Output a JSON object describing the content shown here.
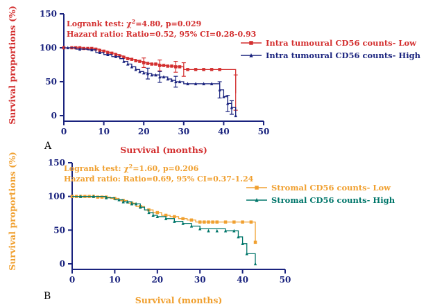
{
  "chart_data": [
    {
      "type": "line",
      "panel_label": "A",
      "xlabel": "Survival (months)",
      "ylabel": "Survival proportions (%)",
      "xlim": [
        0,
        50
      ],
      "ylim": [
        0,
        150
      ],
      "xticks": [
        "0",
        "10",
        "20",
        "30",
        "40",
        "50"
      ],
      "yticks": [
        "0",
        "50",
        "100",
        "150"
      ],
      "annotations": [
        "Logrank test: χ²=4.80, p=0.029",
        "Hazard ratio: Ratio=0.52, 95% CI=0.28-0.93"
      ],
      "legend_position": "right",
      "axis_color": "#1a237e",
      "label_color": "#d32f2f",
      "series": [
        {
          "name": "Intra tumoural CD56 counts- Low",
          "color": "#d32f2f",
          "marker": "square",
          "x": [
            0,
            2,
            5,
            7,
            8,
            9,
            10,
            11,
            12,
            13,
            14,
            15,
            16,
            17,
            18,
            19,
            20,
            21,
            22,
            24,
            26,
            27,
            28,
            30,
            31,
            43
          ],
          "y": [
            100,
            100,
            99,
            99,
            98,
            96,
            95,
            93,
            92,
            90,
            88,
            86,
            84,
            83,
            81,
            80,
            78,
            77,
            76,
            74,
            73,
            73,
            72,
            68,
            68,
            33
          ],
          "censored": [
            {
              "x": 0,
              "y": 100
            },
            {
              "x": 2,
              "y": 100
            },
            {
              "x": 3,
              "y": 100
            },
            {
              "x": 4,
              "y": 100
            },
            {
              "x": 5,
              "y": 99
            },
            {
              "x": 6,
              "y": 99
            },
            {
              "x": 7,
              "y": 99
            },
            {
              "x": 8,
              "y": 98
            },
            {
              "x": 9,
              "y": 96
            },
            {
              "x": 10,
              "y": 95
            },
            {
              "x": 11,
              "y": 93
            },
            {
              "x": 12,
              "y": 92
            },
            {
              "x": 13,
              "y": 90
            },
            {
              "x": 14,
              "y": 88
            },
            {
              "x": 15,
              "y": 86
            },
            {
              "x": 16,
              "y": 84
            },
            {
              "x": 17,
              "y": 83
            },
            {
              "x": 18,
              "y": 81
            },
            {
              "x": 19,
              "y": 80
            },
            {
              "x": 20,
              "y": 78
            },
            {
              "x": 21,
              "y": 77
            },
            {
              "x": 22,
              "y": 76
            },
            {
              "x": 23,
              "y": 76
            },
            {
              "x": 24,
              "y": 74
            },
            {
              "x": 25,
              "y": 74
            },
            {
              "x": 26,
              "y": 73
            },
            {
              "x": 27,
              "y": 73
            },
            {
              "x": 28,
              "y": 72
            },
            {
              "x": 29,
              "y": 72
            },
            {
              "x": 31,
              "y": 68
            },
            {
              "x": 33,
              "y": 68
            },
            {
              "x": 35,
              "y": 68
            },
            {
              "x": 37,
              "y": 68
            },
            {
              "x": 39,
              "y": 68
            }
          ],
          "error_bars": [
            {
              "x": 20,
              "y": 78,
              "lo": 71,
              "hi": 85
            },
            {
              "x": 24,
              "y": 74,
              "lo": 66,
              "hi": 82
            },
            {
              "x": 28,
              "y": 72,
              "lo": 64,
              "hi": 80
            },
            {
              "x": 30,
              "y": 68,
              "lo": 58,
              "hi": 78
            },
            {
              "x": 43,
              "y": 33,
              "lo": 8,
              "hi": 60
            }
          ]
        },
        {
          "name": "Intra tumoural CD56 counts- High",
          "color": "#1a237e",
          "marker": "triangle",
          "x": [
            0,
            3,
            6,
            8,
            10,
            12,
            14,
            15,
            16,
            17,
            18,
            19,
            20,
            21,
            22,
            24,
            26,
            27,
            28,
            30,
            39,
            40,
            41,
            42,
            43
          ],
          "y": [
            100,
            98,
            97,
            93,
            90,
            87,
            84,
            80,
            76,
            72,
            68,
            65,
            63,
            62,
            60,
            57,
            54,
            52,
            50,
            47,
            38,
            28,
            18,
            12,
            0
          ],
          "censored": [
            {
              "x": 1,
              "y": 100
            },
            {
              "x": 4,
              "y": 98
            },
            {
              "x": 7,
              "y": 97
            },
            {
              "x": 9,
              "y": 93
            },
            {
              "x": 11,
              "y": 90
            },
            {
              "x": 13,
              "y": 87
            },
            {
              "x": 15,
              "y": 80
            },
            {
              "x": 16,
              "y": 76
            },
            {
              "x": 17,
              "y": 72
            },
            {
              "x": 18,
              "y": 68
            },
            {
              "x": 19,
              "y": 65
            },
            {
              "x": 20,
              "y": 63
            },
            {
              "x": 21,
              "y": 62
            },
            {
              "x": 22,
              "y": 60
            },
            {
              "x": 23,
              "y": 60
            },
            {
              "x": 24,
              "y": 57
            },
            {
              "x": 25,
              "y": 57
            },
            {
              "x": 26,
              "y": 54
            },
            {
              "x": 27,
              "y": 52
            },
            {
              "x": 28,
              "y": 50
            },
            {
              "x": 29,
              "y": 50
            },
            {
              "x": 31,
              "y": 47
            },
            {
              "x": 33,
              "y": 47
            },
            {
              "x": 35,
              "y": 47
            },
            {
              "x": 37,
              "y": 47
            },
            {
              "x": 39,
              "y": 38
            },
            {
              "x": 40,
              "y": 28
            },
            {
              "x": 41,
              "y": 18
            },
            {
              "x": 42,
              "y": 12
            },
            {
              "x": 43,
              "y": 0
            }
          ],
          "error_bars": [
            {
              "x": 21,
              "y": 62,
              "lo": 54,
              "hi": 70
            },
            {
              "x": 24,
              "y": 57,
              "lo": 49,
              "hi": 65
            },
            {
              "x": 28,
              "y": 50,
              "lo": 42,
              "hi": 58
            },
            {
              "x": 39,
              "y": 38,
              "lo": 26,
              "hi": 50
            },
            {
              "x": 41,
              "y": 18,
              "lo": 6,
              "hi": 30
            },
            {
              "x": 42,
              "y": 12,
              "lo": 2,
              "hi": 22
            }
          ]
        }
      ]
    },
    {
      "type": "line",
      "panel_label": "B",
      "xlabel": "Survival (months)",
      "ylabel": "Survival proportions (%)",
      "xlim": [
        0,
        50
      ],
      "ylim": [
        0,
        150
      ],
      "xticks": [
        "0",
        "10",
        "20",
        "30",
        "40",
        "50"
      ],
      "yticks": [
        "0",
        "50",
        "100",
        "150"
      ],
      "annotations": [
        "Logrank test: χ²=1.60, p=0.206",
        "Hazard ratio: Ratio=0.69, 95% CI=0.37-1.24"
      ],
      "legend_position": "right",
      "axis_color": "#1a237e",
      "label_color": "#f0a030",
      "series": [
        {
          "name": "Stromal CD56 counts- Low",
          "color": "#f0a030",
          "marker": "square",
          "x": [
            0,
            6,
            9,
            11,
            13,
            15,
            17,
            19,
            21,
            23,
            25,
            27,
            29,
            43
          ],
          "y": [
            100,
            99,
            97,
            94,
            90,
            85,
            80,
            76,
            72,
            70,
            67,
            65,
            62,
            32
          ],
          "censored": [
            {
              "x": 0,
              "y": 100
            },
            {
              "x": 1,
              "y": 100
            },
            {
              "x": 2,
              "y": 100
            },
            {
              "x": 3,
              "y": 100
            },
            {
              "x": 4,
              "y": 100
            },
            {
              "x": 5,
              "y": 100
            },
            {
              "x": 6,
              "y": 99
            },
            {
              "x": 7,
              "y": 99
            },
            {
              "x": 8,
              "y": 99
            },
            {
              "x": 10,
              "y": 97
            },
            {
              "x": 12,
              "y": 94
            },
            {
              "x": 14,
              "y": 90
            },
            {
              "x": 16,
              "y": 85
            },
            {
              "x": 18,
              "y": 80
            },
            {
              "x": 20,
              "y": 76
            },
            {
              "x": 22,
              "y": 72
            },
            {
              "x": 24,
              "y": 70
            },
            {
              "x": 26,
              "y": 67
            },
            {
              "x": 28,
              "y": 65
            },
            {
              "x": 30,
              "y": 62
            },
            {
              "x": 31,
              "y": 62
            },
            {
              "x": 32,
              "y": 62
            },
            {
              "x": 33,
              "y": 62
            },
            {
              "x": 34,
              "y": 62
            },
            {
              "x": 36,
              "y": 62
            },
            {
              "x": 38,
              "y": 62
            },
            {
              "x": 40,
              "y": 62
            },
            {
              "x": 42,
              "y": 62
            },
            {
              "x": 43,
              "y": 32
            }
          ],
          "error_bars": []
        },
        {
          "name": "Stromal CD56 counts- High",
          "color": "#00766a",
          "marker": "triangle",
          "x": [
            0,
            8,
            10,
            12,
            14,
            16,
            17,
            18,
            19,
            20,
            22,
            24,
            26,
            28,
            30,
            36,
            39,
            40,
            41,
            43
          ],
          "y": [
            100,
            98,
            95,
            92,
            89,
            84,
            80,
            76,
            72,
            70,
            67,
            63,
            60,
            56,
            52,
            49,
            40,
            30,
            15,
            0
          ],
          "censored": [
            {
              "x": 2,
              "y": 100
            },
            {
              "x": 5,
              "y": 100
            },
            {
              "x": 8,
              "y": 98
            },
            {
              "x": 11,
              "y": 95
            },
            {
              "x": 12,
              "y": 92
            },
            {
              "x": 13,
              "y": 92
            },
            {
              "x": 14,
              "y": 89
            },
            {
              "x": 15,
              "y": 89
            },
            {
              "x": 16,
              "y": 84
            },
            {
              "x": 18,
              "y": 76
            },
            {
              "x": 19,
              "y": 72
            },
            {
              "x": 20,
              "y": 70
            },
            {
              "x": 22,
              "y": 67
            },
            {
              "x": 24,
              "y": 63
            },
            {
              "x": 26,
              "y": 60
            },
            {
              "x": 28,
              "y": 56
            },
            {
              "x": 30,
              "y": 52
            },
            {
              "x": 32,
              "y": 49
            },
            {
              "x": 34,
              "y": 49
            },
            {
              "x": 36,
              "y": 49
            },
            {
              "x": 38,
              "y": 49
            },
            {
              "x": 39,
              "y": 40
            },
            {
              "x": 40,
              "y": 30
            },
            {
              "x": 41,
              "y": 15
            },
            {
              "x": 43,
              "y": 0
            }
          ],
          "error_bars": []
        }
      ]
    }
  ]
}
